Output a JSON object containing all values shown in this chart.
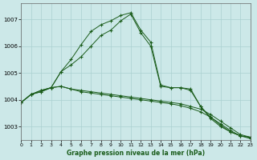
{
  "title": "Graphe pression niveau de la mer (hPa)",
  "background_color": "#cce8e8",
  "grid_color": "#aad0d0",
  "line_color": "#1a5c1a",
  "xlim": [
    0,
    23
  ],
  "ylim": [
    1002.5,
    1007.6
  ],
  "yticks": [
    1003,
    1004,
    1005,
    1006,
    1007
  ],
  "xticks": [
    0,
    1,
    2,
    3,
    4,
    5,
    6,
    7,
    8,
    9,
    10,
    11,
    12,
    13,
    14,
    15,
    16,
    17,
    18,
    19,
    20,
    21,
    22,
    23
  ],
  "series": [
    [
      1003.9,
      1004.2,
      1004.35,
      1004.45,
      1005.05,
      1005.5,
      1006.05,
      1006.55,
      1006.8,
      1006.95,
      1007.15,
      1007.25,
      1006.6,
      1006.15,
      1004.55,
      1004.45,
      1004.45,
      1004.4,
      1003.75,
      1003.35,
      1003.05,
      1002.8,
      1002.65,
      1002.6
    ],
    [
      1003.9,
      1004.2,
      1004.35,
      1004.45,
      1005.05,
      1005.3,
      1005.6,
      1006.0,
      1006.4,
      1006.6,
      1006.95,
      1007.2,
      1006.5,
      1006.0,
      1004.5,
      1004.45,
      1004.45,
      1004.35,
      1003.75,
      1003.3,
      1003.0,
      1002.8,
      1002.65,
      1002.6
    ],
    [
      1003.9,
      1004.2,
      1004.3,
      1004.45,
      1004.5,
      1004.4,
      1004.35,
      1004.3,
      1004.25,
      1004.2,
      1004.15,
      1004.1,
      1004.05,
      1004.0,
      1003.95,
      1003.9,
      1003.85,
      1003.75,
      1003.65,
      1003.45,
      1003.2,
      1002.95,
      1002.7,
      1002.6
    ],
    [
      1003.9,
      1004.2,
      1004.3,
      1004.45,
      1004.5,
      1004.4,
      1004.3,
      1004.25,
      1004.2,
      1004.15,
      1004.1,
      1004.05,
      1004.0,
      1003.95,
      1003.9,
      1003.85,
      1003.78,
      1003.68,
      1003.55,
      1003.35,
      1003.1,
      1002.85,
      1002.65,
      1002.55
    ]
  ]
}
